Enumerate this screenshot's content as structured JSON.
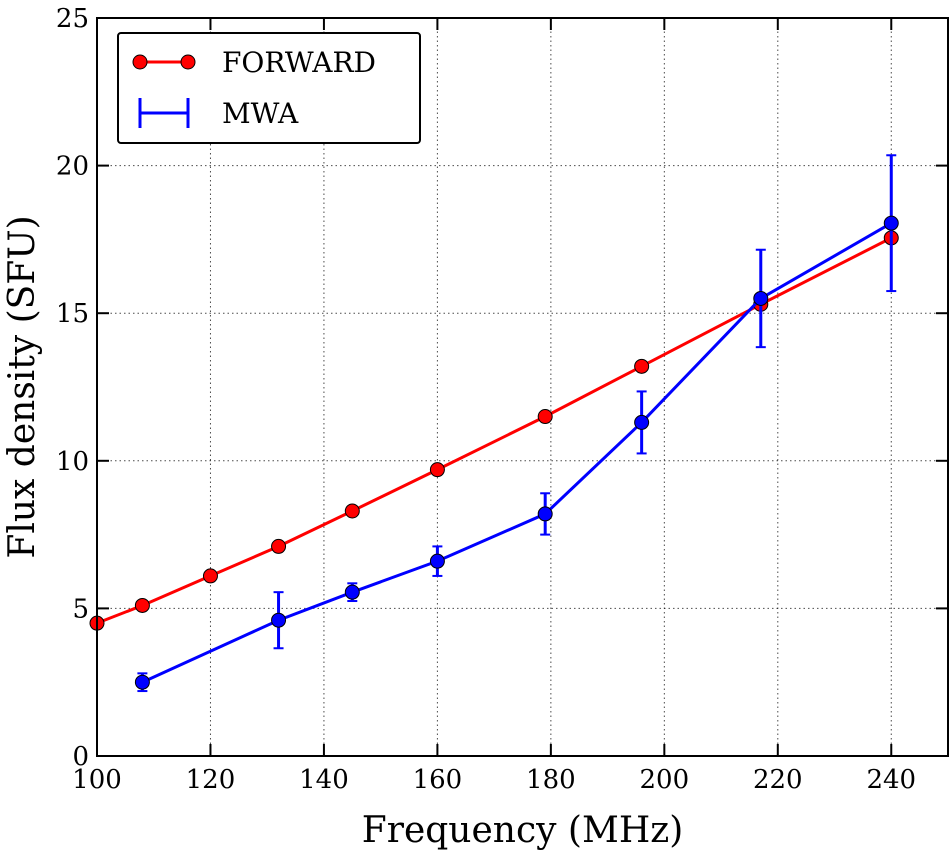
{
  "chart_data": {
    "type": "line",
    "title": "",
    "xlabel": "Frequency (MHz)",
    "ylabel": "Flux density (SFU)",
    "xlim": [
      100,
      250
    ],
    "ylim": [
      0,
      25
    ],
    "xticks": [
      100,
      120,
      140,
      160,
      180,
      200,
      220,
      240
    ],
    "yticks": [
      0,
      5,
      10,
      15,
      20,
      25
    ],
    "xtick_labels": [
      "100",
      "120",
      "140",
      "160",
      "180",
      "200",
      "220",
      "240"
    ],
    "ytick_labels": [
      "0",
      "5",
      "10",
      "15",
      "20",
      "25"
    ],
    "grid": true,
    "legend_position": "top-left",
    "series": [
      {
        "name": "FORWARD",
        "color": "#ff0000",
        "marker": "circle",
        "x": [
          100,
          108,
          120,
          132,
          145,
          160,
          179,
          196,
          217,
          240
        ],
        "y": [
          4.5,
          5.1,
          6.1,
          7.1,
          8.3,
          9.7,
          11.5,
          13.2,
          15.3,
          17.55
        ],
        "errors": null
      },
      {
        "name": "MWA",
        "color": "#0000ff",
        "marker": "circle",
        "x": [
          108,
          132,
          145,
          160,
          179,
          196,
          217,
          240
        ],
        "y": [
          2.5,
          4.6,
          5.55,
          6.6,
          8.2,
          11.3,
          15.5,
          18.05
        ],
        "errors": [
          0.3,
          0.95,
          0.3,
          0.5,
          0.7,
          1.05,
          1.65,
          2.3
        ]
      }
    ]
  }
}
